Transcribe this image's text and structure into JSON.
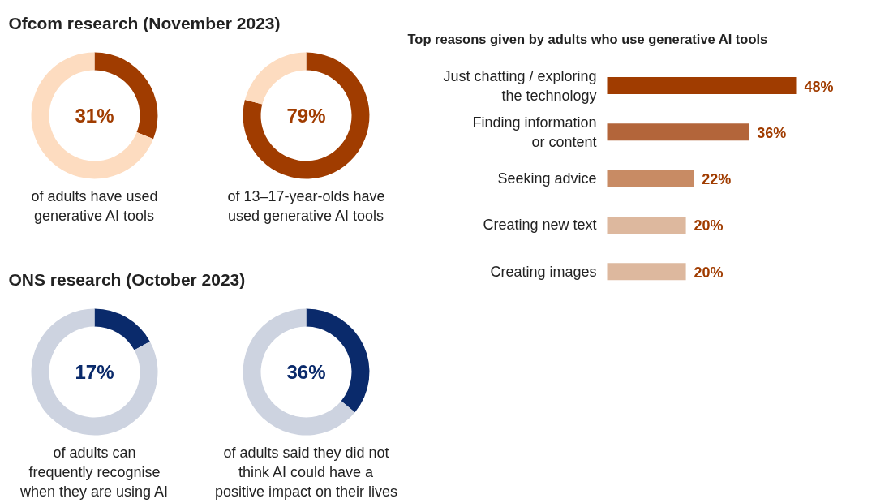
{
  "chart_data": [
    {
      "type": "donut",
      "title": "Ofcom research (November 2023)",
      "categories": [
        null,
        null
      ],
      "values": [
        31,
        69
      ],
      "colors": [
        "#a03c00",
        "#fddcc0"
      ],
      "value_labels": [
        "31%",
        null
      ],
      "annotations": [
        "of adults have used\ngenerative AI tools"
      ]
    },
    {
      "type": "donut",
      "categories": [
        null,
        null
      ],
      "values": [
        79,
        21
      ],
      "colors": [
        "#a03c00",
        "#fddcc0"
      ],
      "value_labels": [
        "79%",
        null
      ],
      "annotations": [
        "of 13–17-year-olds have\nused generative AI tools"
      ]
    },
    {
      "type": "bar",
      "orientation": "horizontal",
      "title": "Top reasons given by adults who use generative AI tools",
      "categories": [
        "Just chatting / exploring\nthe technology",
        "Finding information\nor content",
        "Seeking advice",
        "Creating new text",
        "Creating images"
      ],
      "values": [
        48,
        36,
        22,
        20,
        20
      ],
      "colors": [
        "#a03c00",
        "#b3653a",
        "#c88b64",
        "#ddb89e",
        "#ddb89e"
      ],
      "value_labels": [
        "48%",
        "36%",
        "22%",
        "20%",
        "20%"
      ]
    },
    {
      "type": "donut",
      "title": "ONS research (October 2023)",
      "categories": [
        null,
        null
      ],
      "values": [
        17,
        83
      ],
      "colors": [
        "#0a2a6b",
        "#cdd3e0"
      ],
      "value_labels": [
        "17%",
        null
      ],
      "annotations": [
        "of adults can\nfrequently recognise\nwhen they are using AI"
      ]
    },
    {
      "type": "donut",
      "categories": [
        null,
        null
      ],
      "values": [
        36,
        64
      ],
      "colors": [
        "#0a2a6b",
        "#cdd3e0"
      ],
      "value_labels": [
        "36%",
        null
      ],
      "annotations": [
        "of adults said they did not\nthink AI could have a\npositive impact on their lives"
      ]
    }
  ]
}
